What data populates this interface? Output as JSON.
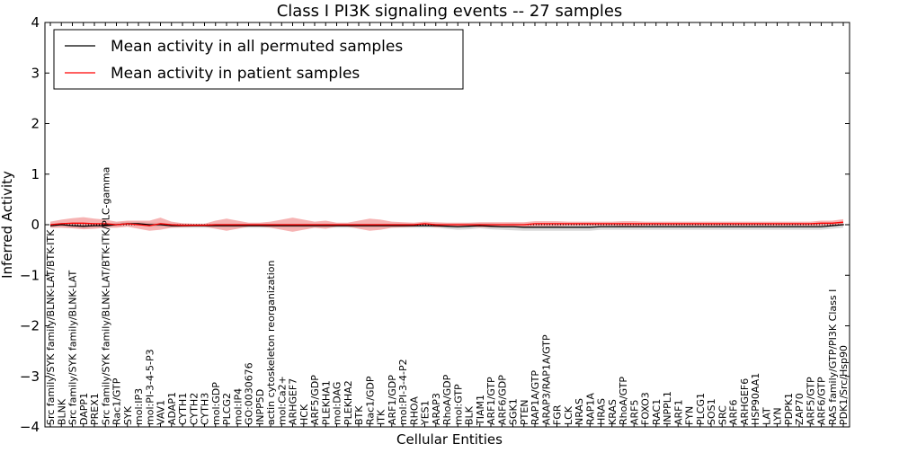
{
  "chart_data": {
    "type": "line",
    "title": "Class I PI3K signaling events -- 27 samples",
    "xlabel": "Cellular Entities",
    "ylabel": "Inferred Activity",
    "ylim": [
      -4,
      4
    ],
    "yticks": [
      "−4",
      "−3",
      "−2",
      "−1",
      "0",
      "1",
      "2",
      "3",
      "4"
    ],
    "legend_position": "top-left",
    "grid": false,
    "categories": [
      "Src family/SYK family/BLNK-LAT/BTK-ITK",
      "BLNK",
      "Src family/SYK family/BLNK-LAT",
      "DAPP1",
      "PREX1",
      "Src family/SYK family/BLNK-LAT/BTK-ITK/PLC-gamma",
      "Rac1/GTP",
      "SYK",
      "mol:IP3",
      "mol:PI-3-4-5-P3",
      "VAV1",
      "ADAP1",
      "CYTH1",
      "CYTH2",
      "CYTH3",
      "mol:GDP",
      "PLCG2",
      "mol:IP4",
      "GO:0030676",
      "INPP5D",
      "actin cytoskeleton reorganization",
      "mol:Ca2+",
      "ARHGEF7",
      "HCK",
      "ARF5/GDP",
      "PLEKHA1",
      "mol:DAG",
      "PLEKHA2",
      "BTK",
      "Rac1/GDP",
      "ITK",
      "ARF1/GDP",
      "mol:PI-3-4-P2",
      "RHOA",
      "YES1",
      "ARAP3",
      "RhoA/GDP",
      "mol:GTP",
      "BLK",
      "TIAM1",
      "ARF1/GTP",
      "ARF6/GDP",
      "SGK1",
      "PTEN",
      "RAP1A/GTP",
      "ARAP3/RAP1A/GTP",
      "FGR",
      "LCK",
      "NRAS",
      "RAP1A",
      "HRAS",
      "KRAS",
      "RhoA/GTP",
      "ARF5",
      "FOXO3",
      "RAC1",
      "INPPL1",
      "ARF1",
      "FYN",
      "PLCG1",
      "SOS1",
      "SRC",
      "ARF6",
      "ARHGEF6",
      "HSP90AA1",
      "LAT",
      "LYN",
      "PDPK1",
      "ZAP70",
      "ARF5/GTP",
      "ARF6/GTP",
      "RAS family/GTP/PI3K Class I",
      "PDK1/Src/Hsp90"
    ],
    "series": [
      {
        "name": "Mean activity in all permuted samples",
        "color": "#000000",
        "values": [
          -0.02,
          0.0,
          -0.02,
          -0.03,
          -0.02,
          -0.02,
          0.0,
          0.02,
          0.02,
          0.0,
          0.0,
          -0.02,
          -0.02,
          -0.02,
          -0.02,
          -0.02,
          -0.02,
          -0.02,
          -0.02,
          -0.02,
          -0.02,
          -0.02,
          -0.02,
          -0.02,
          -0.02,
          -0.02,
          -0.02,
          -0.02,
          -0.02,
          -0.02,
          -0.02,
          -0.02,
          -0.02,
          -0.02,
          -0.02,
          -0.02,
          -0.03,
          -0.04,
          -0.03,
          -0.02,
          -0.03,
          -0.04,
          -0.04,
          -0.05,
          -0.05,
          -0.05,
          -0.05,
          -0.05,
          -0.05,
          -0.05,
          -0.04,
          -0.04,
          -0.04,
          -0.04,
          -0.04,
          -0.04,
          -0.04,
          -0.04,
          -0.04,
          -0.04,
          -0.04,
          -0.04,
          -0.04,
          -0.04,
          -0.04,
          -0.04,
          -0.04,
          -0.04,
          -0.04,
          -0.04,
          -0.04,
          -0.02,
          0.0
        ]
      },
      {
        "name": "Mean activity in patient samples",
        "color": "#ff0000",
        "values": [
          0.0,
          0.02,
          0.03,
          0.03,
          0.02,
          0.02,
          0.0,
          0.02,
          0.0,
          -0.02,
          0.02,
          0.0,
          -0.01,
          -0.01,
          -0.01,
          0.0,
          0.0,
          0.0,
          0.0,
          0.0,
          0.0,
          0.0,
          0.0,
          0.0,
          0.0,
          0.0,
          0.0,
          0.0,
          0.0,
          0.0,
          0.0,
          0.0,
          0.0,
          0.0,
          0.02,
          0.0,
          0.0,
          0.0,
          0.0,
          0.0,
          0.0,
          0.0,
          0.0,
          0.0,
          0.02,
          0.02,
          0.02,
          0.02,
          0.02,
          0.02,
          0.02,
          0.02,
          0.02,
          0.02,
          0.02,
          0.02,
          0.02,
          0.02,
          0.02,
          0.02,
          0.02,
          0.02,
          0.02,
          0.02,
          0.02,
          0.02,
          0.02,
          0.02,
          0.02,
          0.02,
          0.03,
          0.03,
          0.05
        ]
      }
    ],
    "bands": [
      {
        "color": "#bbbbbb",
        "half_width": [
          0.04,
          0.04,
          0.04,
          0.04,
          0.04,
          0.04,
          0.04,
          0.04,
          0.04,
          0.04,
          0.04,
          0.04,
          0.04,
          0.04,
          0.04,
          0.04,
          0.04,
          0.04,
          0.04,
          0.04,
          0.04,
          0.04,
          0.04,
          0.04,
          0.04,
          0.04,
          0.04,
          0.04,
          0.04,
          0.04,
          0.04,
          0.04,
          0.04,
          0.04,
          0.04,
          0.04,
          0.05,
          0.06,
          0.06,
          0.05,
          0.06,
          0.06,
          0.07,
          0.07,
          0.07,
          0.07,
          0.07,
          0.07,
          0.07,
          0.07,
          0.06,
          0.06,
          0.06,
          0.06,
          0.06,
          0.06,
          0.06,
          0.06,
          0.06,
          0.06,
          0.06,
          0.06,
          0.06,
          0.06,
          0.06,
          0.06,
          0.06,
          0.06,
          0.06,
          0.06,
          0.06,
          0.06,
          0.06
        ]
      },
      {
        "color": "#f08080",
        "half_width": [
          0.06,
          0.08,
          0.1,
          0.12,
          0.1,
          0.08,
          0.06,
          0.06,
          0.08,
          0.1,
          0.12,
          0.06,
          0.04,
          0.03,
          0.03,
          0.08,
          0.12,
          0.08,
          0.04,
          0.04,
          0.06,
          0.1,
          0.14,
          0.1,
          0.06,
          0.08,
          0.04,
          0.04,
          0.08,
          0.12,
          0.1,
          0.06,
          0.05,
          0.04,
          0.04,
          0.05,
          0.04,
          0.04,
          0.04,
          0.05,
          0.05,
          0.05,
          0.05,
          0.05,
          0.05,
          0.05,
          0.05,
          0.04,
          0.04,
          0.04,
          0.04,
          0.04,
          0.05,
          0.05,
          0.04,
          0.04,
          0.04,
          0.04,
          0.04,
          0.04,
          0.04,
          0.04,
          0.04,
          0.04,
          0.04,
          0.04,
          0.04,
          0.04,
          0.04,
          0.04,
          0.05,
          0.05,
          0.06
        ]
      }
    ]
  }
}
